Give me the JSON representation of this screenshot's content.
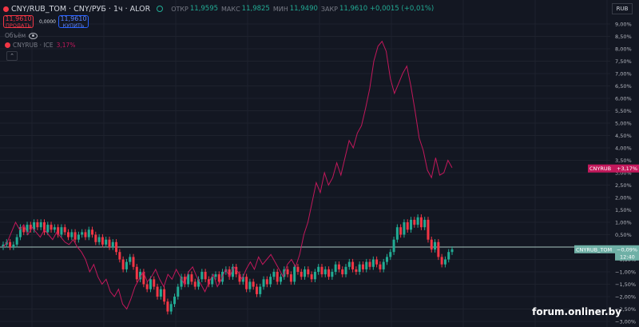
{
  "header": {
    "title": "CNY/RUB_TOM · CNY/РУБ · 1ч · ALOR",
    "ohlc": [
      {
        "label": "ОТКР",
        "value": "11,9595"
      },
      {
        "label": "МАКС",
        "value": "11,9825"
      },
      {
        "label": "МИН",
        "value": "11,9490"
      },
      {
        "label": "ЗАКР",
        "value": "11,9610 +0,0015 (+0,01%)"
      }
    ]
  },
  "trade": {
    "sell_price": "11,9610",
    "sell_label": "ПРОДАТЬ",
    "spread": "0,0000",
    "buy_price": "11,9610",
    "buy_label": "КУПИТЬ"
  },
  "volume_label": "Объём",
  "compare": {
    "name": "CNYRUB · ICE",
    "change": "3,17%"
  },
  "currency_button": "RUB",
  "watermark": "forum.onliner.by",
  "colors": {
    "up": "#22ab94",
    "down": "#f23645",
    "compare": "#c2185b",
    "background": "#131722"
  },
  "chart_data": {
    "type": "candlestick",
    "y_axis": {
      "unit": "percent",
      "range": [
        -3.0,
        9.0
      ],
      "ticks": [
        9.0,
        8.5,
        8.0,
        7.5,
        7.0,
        6.5,
        6.0,
        5.5,
        5.0,
        4.5,
        4.0,
        3.5,
        3.0,
        2.5,
        2.0,
        1.5,
        1.0,
        0.5,
        0.0,
        -0.5,
        -1.0,
        -1.5,
        -2.0,
        -2.5,
        -3.0
      ],
      "tick_labels": [
        "9,00%",
        "8,50%",
        "8,00%",
        "7,50%",
        "7,00%",
        "6,50%",
        "6,00%",
        "5,50%",
        "5,00%",
        "4,50%",
        "4,00%",
        "3,50%",
        "3,00%",
        "2,50%",
        "2,00%",
        "1,50%",
        "1,00%",
        "0,50%",
        "0,00%",
        "−0,50%",
        "−1,00%",
        "−1,50%",
        "−2,00%",
        "−2,50%",
        "−3,00%"
      ]
    },
    "grid": true,
    "baseline": 0.0,
    "main_series": {
      "name": "CNYRUB_TOM",
      "last_change": "−0,09%",
      "last_value": -0.09,
      "countdown": "12:40",
      "close_percent": [
        0.1,
        0.2,
        0.0,
        0.1,
        0.4,
        0.8,
        0.6,
        0.9,
        0.7,
        1.0,
        0.8,
        1.0,
        0.6,
        0.9,
        0.7,
        0.8,
        0.5,
        0.8,
        0.6,
        0.4,
        0.6,
        0.3,
        0.5,
        0.6,
        0.4,
        0.7,
        0.5,
        0.2,
        0.4,
        0.1,
        0.3,
        0.0,
        0.2,
        -0.2,
        -0.5,
        -0.9,
        -0.6,
        -0.4,
        -0.8,
        -1.3,
        -1.0,
        -1.5,
        -1.7,
        -1.3,
        -1.6,
        -2.0,
        -1.7,
        -2.2,
        -2.6,
        -2.3,
        -2.0,
        -1.6,
        -1.2,
        -1.5,
        -1.1,
        -1.4,
        -1.6,
        -1.3,
        -1.0,
        -1.3,
        -1.5,
        -1.2,
        -1.1,
        -1.4,
        -1.0,
        -0.9,
        -1.2,
        -0.8,
        -1.1,
        -1.4,
        -1.2,
        -1.7,
        -1.4,
        -1.6,
        -1.9,
        -1.6,
        -1.3,
        -1.5,
        -1.2,
        -1.0,
        -1.4,
        -1.2,
        -0.9,
        -1.1,
        -1.4,
        -0.8,
        -1.0,
        -1.2,
        -0.9,
        -1.1,
        -1.3,
        -1.0,
        -0.8,
        -1.1,
        -0.9,
        -1.2,
        -1.0,
        -0.7,
        -0.9,
        -1.1,
        -0.8,
        -0.6,
        -0.9,
        -1.0,
        -0.7,
        -0.9,
        -0.6,
        -0.8,
        -0.5,
        -0.7,
        -0.9,
        -0.6,
        -0.4,
        -0.2,
        0.3,
        0.8,
        0.5,
        1.0,
        0.7,
        1.1,
        0.9,
        1.2,
        0.8,
        1.1,
        0.3,
        -0.1,
        0.2,
        -0.4,
        -0.7,
        -0.5,
        -0.2,
        -0.09
      ]
    },
    "compare_series": {
      "name": "CNYRUB",
      "last_change": "+3,17%",
      "last_value": 3.17,
      "values_percent": [
        0.0,
        0.2,
        0.6,
        1.0,
        0.7,
        0.9,
        0.5,
        0.8,
        0.6,
        0.4,
        0.7,
        0.5,
        0.3,
        0.6,
        0.4,
        0.2,
        0.1,
        0.3,
        0.0,
        -0.2,
        -0.5,
        -1.0,
        -0.7,
        -1.2,
        -1.5,
        -1.3,
        -1.8,
        -2.0,
        -1.7,
        -2.3,
        -2.5,
        -2.1,
        -1.6,
        -1.3,
        -1.0,
        -1.4,
        -1.2,
        -0.9,
        -1.3,
        -1.6,
        -1.1,
        -1.3,
        -0.9,
        -1.2,
        -1.5,
        -1.0,
        -0.8,
        -1.2,
        -1.5,
        -1.8,
        -1.4,
        -1.1,
        -1.6,
        -1.3,
        -0.9,
        -1.2,
        -0.8,
        -1.0,
        -1.3,
        -0.9,
        -0.6,
        -0.9,
        -0.4,
        -0.7,
        -0.5,
        -0.3,
        -0.6,
        -0.9,
        -1.2,
        -0.7,
        -0.5,
        -0.8,
        -0.3,
        0.5,
        1.0,
        1.8,
        2.6,
        2.2,
        3.0,
        2.5,
        2.8,
        3.4,
        2.9,
        3.6,
        4.3,
        4.0,
        4.6,
        4.9,
        5.6,
        6.4,
        7.5,
        8.1,
        8.3,
        7.9,
        6.8,
        6.2,
        6.6,
        7.0,
        7.3,
        6.5,
        5.5,
        4.4,
        3.9,
        3.1,
        2.8,
        3.6,
        2.9,
        3.0,
        3.5,
        3.2
      ]
    }
  }
}
